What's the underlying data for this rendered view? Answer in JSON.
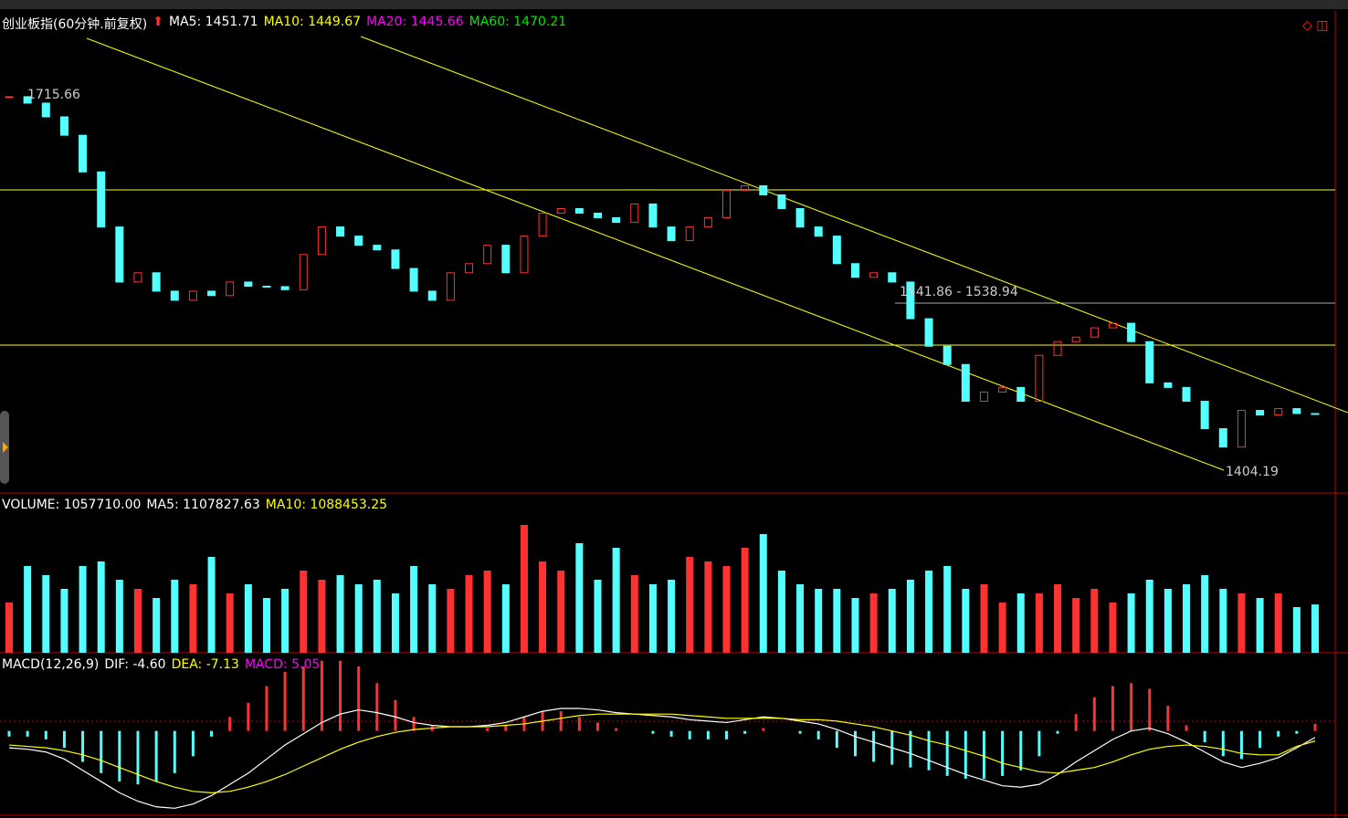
{
  "price_panel": {
    "title": "创业板指(60分钟.前复权)",
    "indicators": [
      {
        "label": "MA5: 1451.71",
        "color": "#ffffff"
      },
      {
        "label": "MA10: 1449.67",
        "color": "#ffff00"
      },
      {
        "label": "MA20: 1445.66",
        "color": "#ff00ff"
      },
      {
        "label": "MA60: 1470.21",
        "color": "#00e600"
      }
    ],
    "annotations": [
      "1715.66",
      "1541.86 - 1538.94",
      "1404.19"
    ],
    "ylim": [
      1386,
      1787
    ],
    "up_color": "#ff3232",
    "down_color": "#54ffff",
    "closes": [
      1715.7,
      1710.3,
      1698.9,
      1683.6,
      1653.1,
      1607.3,
      1561.5,
      1569.2,
      1553.9,
      1546.3,
      1553.9,
      1550.2,
      1561.5,
      1558.0,
      1557.7,
      1555.1,
      1584.4,
      1607.3,
      1599.7,
      1592.1,
      1588.2,
      1572.8,
      1553.9,
      1546.3,
      1569.2,
      1576.8,
      1592.1,
      1569.2,
      1599.7,
      1618.8,
      1622.6,
      1618.8,
      1615.0,
      1611.1,
      1626.4,
      1607.3,
      1595.9,
      1607.3,
      1615.0,
      1637.8,
      1641.6,
      1634.0,
      1622.6,
      1607.3,
      1599.7,
      1576.8,
      1565.4,
      1569.2,
      1561.5,
      1531.0,
      1508.1,
      1492.9,
      1462.3,
      1470.0,
      1473.8,
      1462.3,
      1500.5,
      1511.9,
      1515.7,
      1523.4,
      1527.2,
      1511.9,
      1477.6,
      1473.8,
      1462.3,
      1439.5,
      1424.2,
      1454.7,
      1450.9,
      1456.2,
      1452.1,
      1451.7
    ]
  },
  "volume_panel": {
    "indicators": [
      {
        "label": "VOLUME: 1057710.00",
        "color": "#ffffff"
      },
      {
        "label": "MA5: 1107827.63",
        "color": "#ffffff"
      },
      {
        "label": "MA10: 1088453.25",
        "color": "#ffff00"
      }
    ],
    "ylim": [
      0,
      3400000
    ],
    "values": [
      1100000,
      1900000,
      1700000,
      1400000,
      1900000,
      2000000,
      1600000,
      1400000,
      1200000,
      1600000,
      1500000,
      2100000,
      1300000,
      1500000,
      1200000,
      1400000,
      1800000,
      1600000,
      1700000,
      1500000,
      1600000,
      1300000,
      1900000,
      1500000,
      1400000,
      1700000,
      1800000,
      1500000,
      2800000,
      2000000,
      1800000,
      2400000,
      1600000,
      2300000,
      1700000,
      1500000,
      1600000,
      2100000,
      2000000,
      1900000,
      2300000,
      2600000,
      1800000,
      1500000,
      1400000,
      1400000,
      1200000,
      1300000,
      1400000,
      1600000,
      1800000,
      1900000,
      1400000,
      1500000,
      1100000,
      1300000,
      1300000,
      1500000,
      1200000,
      1400000,
      1100000,
      1300000,
      1600000,
      1400000,
      1500000,
      1700000,
      1400000,
      1300000,
      1200000,
      1300000,
      1000000,
      1057710
    ]
  },
  "macd_panel": {
    "indicators": [
      {
        "label": "MACD(12,26,9)",
        "color": "#ffffff"
      },
      {
        "label": "DIF: -4.60",
        "color": "#ffffff"
      },
      {
        "label": "DEA: -7.13",
        "color": "#ffff00"
      },
      {
        "label": "MACD: 5.05",
        "color": "#ff00ff"
      }
    ],
    "ylim": [
      -60,
      55
    ],
    "dif_color": "#ffffff",
    "dea_color": "#ffff00",
    "dif": [
      -12,
      -13,
      -15,
      -20,
      -28,
      -36,
      -44,
      -50,
      -54,
      -55,
      -52,
      -46,
      -38,
      -30,
      -20,
      -10,
      -2,
      6,
      12,
      15,
      13,
      10,
      6,
      4,
      3,
      3,
      4,
      6,
      10,
      14,
      16,
      16,
      15,
      13,
      12,
      11,
      10,
      8,
      7,
      6,
      8,
      10,
      9,
      7,
      5,
      1,
      -4,
      -8,
      -12,
      -16,
      -21,
      -26,
      -31,
      -35,
      -39,
      -40,
      -38,
      -31,
      -22,
      -14,
      -6,
      0,
      2,
      -2,
      -8,
      -15,
      -22,
      -26,
      -23,
      -19,
      -12,
      -4.6
    ],
    "dea": [
      -10,
      -11,
      -12,
      -14,
      -17,
      -21,
      -26,
      -31,
      -36,
      -40,
      -43,
      -44,
      -43,
      -40,
      -36,
      -31,
      -25,
      -19,
      -13,
      -8,
      -4,
      -1,
      1,
      2,
      3,
      3,
      3,
      4,
      5,
      7,
      9,
      11,
      12,
      12,
      12,
      12,
      12,
      11,
      10,
      9,
      9,
      9,
      9,
      8,
      8,
      7,
      5,
      3,
      0,
      -3,
      -7,
      -10,
      -14,
      -18,
      -23,
      -26,
      -29,
      -30,
      -28,
      -26,
      -22,
      -17,
      -13,
      -11,
      -10,
      -11,
      -13,
      -16,
      -17,
      -17,
      -11,
      -7.13
    ],
    "macd": [
      -4,
      -4,
      -6,
      -12,
      -22,
      -30,
      -36,
      -38,
      -36,
      -30,
      -18,
      -4,
      10,
      20,
      32,
      42,
      46,
      50,
      50,
      46,
      34,
      22,
      10,
      4,
      0,
      0,
      2,
      4,
      10,
      14,
      14,
      10,
      6,
      2,
      0,
      -2,
      -4,
      -6,
      -6,
      -6,
      -2,
      2,
      0,
      -2,
      -6,
      -12,
      -18,
      -22,
      -24,
      -26,
      -28,
      -32,
      -34,
      -34,
      -32,
      -28,
      -18,
      -2,
      12,
      24,
      32,
      34,
      30,
      18,
      4,
      -8,
      -18,
      -20,
      -12,
      -4,
      -2,
      5.05
    ]
  }
}
